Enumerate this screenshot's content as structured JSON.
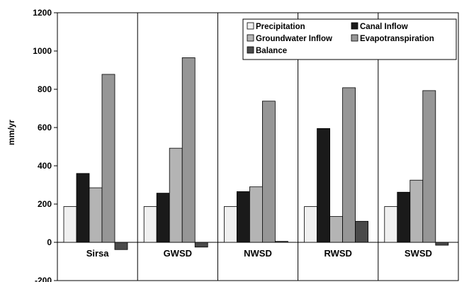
{
  "chart_data": {
    "type": "bar",
    "title": "",
    "xlabel": "",
    "ylabel": "mm/yr",
    "ylim": [
      -200,
      1200
    ],
    "yticks": [
      -200,
      0,
      200,
      400,
      600,
      800,
      1000,
      1200
    ],
    "categories": [
      "Sirsa",
      "GWSD",
      "NWSD",
      "RWSD",
      "SWSD"
    ],
    "series": [
      {
        "name": "Precipitation",
        "color": "#f0f0f0",
        "values": [
          187,
          187,
          187,
          187,
          187
        ]
      },
      {
        "name": "Canal Inflow",
        "color": "#1a1a1a",
        "values": [
          360,
          257,
          265,
          595,
          262
        ]
      },
      {
        "name": "Groundwater Inflow",
        "color": "#b4b4b4",
        "values": [
          285,
          492,
          290,
          135,
          325
        ]
      },
      {
        "name": "Evapotranspiration",
        "color": "#969696",
        "values": [
          878,
          965,
          738,
          808,
          793
        ]
      },
      {
        "name": "Balance",
        "color": "#4a4a4a",
        "values": [
          -38,
          -25,
          5,
          110,
          -15
        ]
      }
    ],
    "legend_position": "top-right",
    "grid": false
  }
}
